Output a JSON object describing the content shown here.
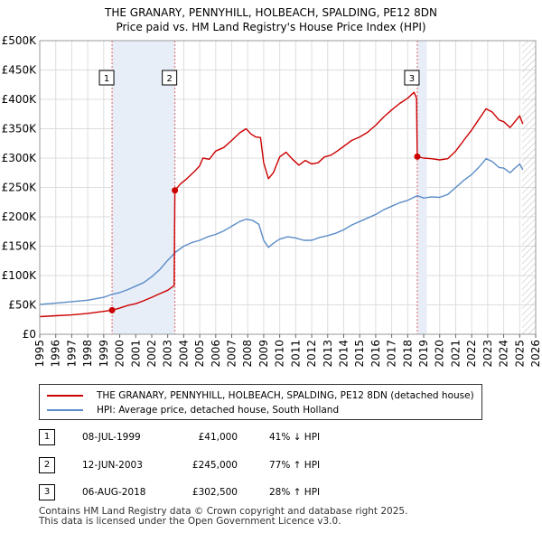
{
  "title": {
    "line1": "THE GRANARY, PENNYHILL, HOLBEACH, SPALDING, PE12 8DN",
    "line2": "Price paid vs. HM Land Registry's House Price Index (HPI)"
  },
  "chart_data": {
    "type": "line",
    "xlim": [
      1995,
      2026
    ],
    "ylim": [
      0,
      500000
    ],
    "x_ticks": [
      "1995",
      "1996",
      "1997",
      "1998",
      "1999",
      "2000",
      "2001",
      "2002",
      "2003",
      "2004",
      "2005",
      "2006",
      "2007",
      "2008",
      "2009",
      "2010",
      "2011",
      "2012",
      "2013",
      "2014",
      "2015",
      "2016",
      "2017",
      "2018",
      "2019",
      "2020",
      "2021",
      "2022",
      "2023",
      "2024",
      "2025",
      "2026"
    ],
    "y_ticks": [
      {
        "value": 0,
        "label": "£0"
      },
      {
        "value": 50000,
        "label": "£50K"
      },
      {
        "value": 100000,
        "label": "£100K"
      },
      {
        "value": 150000,
        "label": "£150K"
      },
      {
        "value": 200000,
        "label": "£200K"
      },
      {
        "value": 250000,
        "label": "£250K"
      },
      {
        "value": 300000,
        "label": "£300K"
      },
      {
        "value": 350000,
        "label": "£350K"
      },
      {
        "value": 400000,
        "label": "£400K"
      },
      {
        "value": 450000,
        "label": "£450K"
      },
      {
        "value": 500000,
        "label": "£500K"
      }
    ],
    "grid": true,
    "shaded_periods": [
      [
        1999.52,
        2003.45
      ],
      [
        2018.6,
        2019.2
      ]
    ],
    "hatched_after": 2025.15,
    "series": [
      {
        "name": "THE GRANARY, PENNYHILL, HOLBEACH, SPALDING, PE12 8DN (detached house)",
        "color": "#cc0000",
        "points": [
          [
            1995.0,
            30000
          ],
          [
            1996.0,
            31500
          ],
          [
            1997.0,
            33000
          ],
          [
            1998.0,
            35500
          ],
          [
            1999.52,
            41000
          ],
          [
            2000.0,
            44500
          ],
          [
            2000.5,
            49000
          ],
          [
            2001.0,
            52000
          ],
          [
            2001.5,
            57000
          ],
          [
            2002.0,
            63000
          ],
          [
            2002.5,
            69000
          ],
          [
            2003.0,
            75000
          ],
          [
            2003.4,
            83000
          ],
          [
            2003.45,
            245000
          ],
          [
            2003.8,
            256000
          ],
          [
            2004.2,
            265000
          ],
          [
            2004.7,
            278000
          ],
          [
            2005.0,
            287000
          ],
          [
            2005.2,
            300000
          ],
          [
            2005.6,
            298000
          ],
          [
            2006.0,
            312000
          ],
          [
            2006.5,
            318000
          ],
          [
            2007.0,
            330000
          ],
          [
            2007.5,
            343000
          ],
          [
            2007.9,
            350000
          ],
          [
            2008.2,
            341000
          ],
          [
            2008.5,
            336000
          ],
          [
            2008.8,
            335000
          ],
          [
            2009.0,
            292000
          ],
          [
            2009.3,
            265000
          ],
          [
            2009.6,
            275000
          ],
          [
            2010.0,
            302000
          ],
          [
            2010.4,
            310000
          ],
          [
            2010.8,
            298000
          ],
          [
            2011.2,
            288000
          ],
          [
            2011.6,
            296000
          ],
          [
            2012.0,
            290000
          ],
          [
            2012.4,
            292000
          ],
          [
            2012.8,
            302000
          ],
          [
            2013.2,
            305000
          ],
          [
            2013.6,
            312000
          ],
          [
            2014.0,
            320000
          ],
          [
            2014.5,
            330000
          ],
          [
            2015.0,
            336000
          ],
          [
            2015.5,
            344000
          ],
          [
            2016.0,
            356000
          ],
          [
            2016.5,
            370000
          ],
          [
            2017.0,
            382000
          ],
          [
            2017.5,
            393000
          ],
          [
            2018.0,
            402000
          ],
          [
            2018.4,
            412000
          ],
          [
            2018.55,
            402000
          ],
          [
            2018.6,
            302500
          ],
          [
            2019.0,
            300000
          ],
          [
            2019.5,
            299000
          ],
          [
            2020.0,
            297000
          ],
          [
            2020.5,
            299000
          ],
          [
            2021.0,
            312000
          ],
          [
            2021.5,
            330000
          ],
          [
            2022.0,
            348000
          ],
          [
            2022.5,
            368000
          ],
          [
            2022.9,
            384000
          ],
          [
            2023.3,
            378000
          ],
          [
            2023.7,
            365000
          ],
          [
            2024.0,
            362000
          ],
          [
            2024.4,
            352000
          ],
          [
            2024.7,
            362000
          ],
          [
            2025.0,
            372000
          ],
          [
            2025.2,
            358000
          ]
        ]
      },
      {
        "name": "HPI: Average price, detached house, South Holland",
        "color": "#5b8cc8",
        "points": [
          [
            1995.0,
            51000
          ],
          [
            1996.0,
            53000
          ],
          [
            1997.0,
            55500
          ],
          [
            1998.0,
            58000
          ],
          [
            1999.0,
            63000
          ],
          [
            1999.52,
            68000
          ],
          [
            2000.0,
            71000
          ],
          [
            2000.5,
            76000
          ],
          [
            2001.0,
            82000
          ],
          [
            2001.5,
            88000
          ],
          [
            2002.0,
            98000
          ],
          [
            2002.5,
            110000
          ],
          [
            2003.0,
            126000
          ],
          [
            2003.5,
            140000
          ],
          [
            2004.0,
            150000
          ],
          [
            2004.5,
            156000
          ],
          [
            2005.0,
            160000
          ],
          [
            2005.5,
            166000
          ],
          [
            2006.0,
            170000
          ],
          [
            2006.5,
            176000
          ],
          [
            2007.0,
            184000
          ],
          [
            2007.5,
            192000
          ],
          [
            2007.9,
            196000
          ],
          [
            2008.3,
            194000
          ],
          [
            2008.7,
            187000
          ],
          [
            2009.0,
            160000
          ],
          [
            2009.3,
            148000
          ],
          [
            2009.6,
            155000
          ],
          [
            2010.0,
            162000
          ],
          [
            2010.5,
            166000
          ],
          [
            2011.0,
            164000
          ],
          [
            2011.5,
            160000
          ],
          [
            2012.0,
            160000
          ],
          [
            2012.5,
            165000
          ],
          [
            2013.0,
            168000
          ],
          [
            2013.5,
            172000
          ],
          [
            2014.0,
            178000
          ],
          [
            2014.5,
            186000
          ],
          [
            2015.0,
            192000
          ],
          [
            2015.5,
            198000
          ],
          [
            2016.0,
            204000
          ],
          [
            2016.5,
            212000
          ],
          [
            2017.0,
            218000
          ],
          [
            2017.5,
            224000
          ],
          [
            2018.0,
            228000
          ],
          [
            2018.6,
            236000
          ],
          [
            2019.0,
            232000
          ],
          [
            2019.5,
            234000
          ],
          [
            2020.0,
            233000
          ],
          [
            2020.5,
            238000
          ],
          [
            2021.0,
            250000
          ],
          [
            2021.5,
            262000
          ],
          [
            2022.0,
            272000
          ],
          [
            2022.5,
            286000
          ],
          [
            2022.9,
            299000
          ],
          [
            2023.3,
            294000
          ],
          [
            2023.7,
            284000
          ],
          [
            2024.0,
            283000
          ],
          [
            2024.4,
            275000
          ],
          [
            2024.7,
            283000
          ],
          [
            2025.0,
            290000
          ],
          [
            2025.2,
            280000
          ]
        ]
      }
    ],
    "sale_markers": [
      {
        "id": "1",
        "x": 1999.52,
        "y": 41000
      },
      {
        "id": "2",
        "x": 2003.45,
        "y": 245000
      },
      {
        "id": "3",
        "x": 2018.6,
        "y": 302500
      }
    ]
  },
  "legend": {
    "items": [
      {
        "label": "THE GRANARY, PENNYHILL, HOLBEACH, SPALDING, PE12 8DN (detached house)",
        "color": "#cc0000"
      },
      {
        "label": "HPI: Average price, detached house, South Holland",
        "color": "#5b8cc8"
      }
    ]
  },
  "sales": [
    {
      "id": "1",
      "date": "08-JUL-1999",
      "price": "£41,000",
      "pct": "41% ↓ HPI"
    },
    {
      "id": "2",
      "date": "12-JUN-2003",
      "price": "£245,000",
      "pct": "77% ↑ HPI"
    },
    {
      "id": "3",
      "date": "06-AUG-2018",
      "price": "£302,500",
      "pct": "28% ↑ HPI"
    }
  ],
  "footer": {
    "line1": "Contains HM Land Registry data © Crown copyright and database right 2025.",
    "line2": "This data is licensed under the Open Government Licence v3.0."
  }
}
